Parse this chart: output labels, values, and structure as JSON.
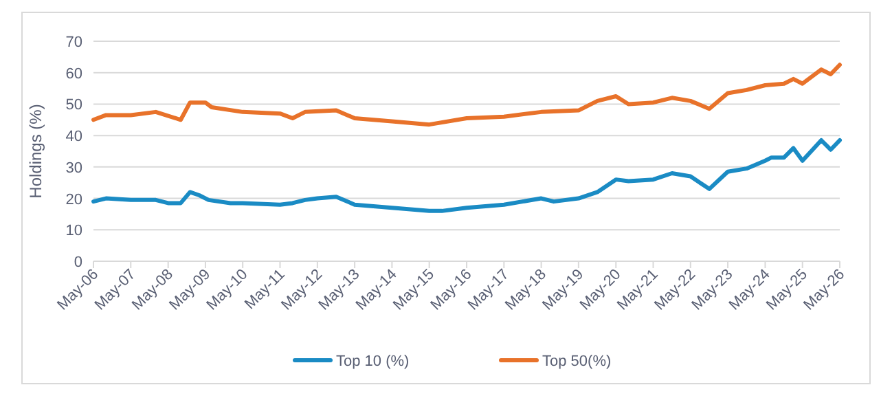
{
  "chart_data": {
    "type": "line",
    "ylabel": "Holdings (%)",
    "xlim": [
      "2006-05",
      "2026-05"
    ],
    "xticks": [
      {
        "value": "2006-05",
        "label": "May-06"
      },
      {
        "value": "2007-05",
        "label": "May-07"
      },
      {
        "value": "2008-05",
        "label": "May-08"
      },
      {
        "value": "2009-05",
        "label": "May-09"
      },
      {
        "value": "2010-05",
        "label": "May-10"
      },
      {
        "value": "2011-05",
        "label": "May-11"
      },
      {
        "value": "2012-05",
        "label": "May-12"
      },
      {
        "value": "2013-05",
        "label": "May-13"
      },
      {
        "value": "2014-05",
        "label": "May-14"
      },
      {
        "value": "2015-05",
        "label": "May-15"
      },
      {
        "value": "2016-05",
        "label": "May-16"
      },
      {
        "value": "2017-05",
        "label": "May-17"
      },
      {
        "value": "2018-05",
        "label": "May-18"
      },
      {
        "value": "2019-05",
        "label": "May-19"
      },
      {
        "value": "2020-05",
        "label": "May-20"
      },
      {
        "value": "2021-05",
        "label": "May-21"
      },
      {
        "value": "2022-05",
        "label": "May-22"
      },
      {
        "value": "2023-05",
        "label": "May-23"
      },
      {
        "value": "2024-05",
        "label": "May-24"
      },
      {
        "value": "2025-05",
        "label": "May-25"
      },
      {
        "value": "2026-05",
        "label": "May-26"
      }
    ],
    "ylim": [
      0,
      70
    ],
    "yticks": [
      0,
      10,
      20,
      30,
      40,
      50,
      60,
      70
    ],
    "grid": "y",
    "legend": "bottom",
    "marker": "none",
    "line_style": "solid",
    "series": [
      {
        "name": "Top 10 (%)",
        "color": "#1a8bc4",
        "x": [
          "2006-05",
          "2006-09",
          "2007-05",
          "2008-01",
          "2008-05",
          "2008-09",
          "2008-12",
          "2009-03",
          "2009-06",
          "2010-01",
          "2010-05",
          "2011-05",
          "2011-09",
          "2012-01",
          "2012-05",
          "2012-11",
          "2013-05",
          "2014-05",
          "2015-05",
          "2015-09",
          "2016-05",
          "2017-05",
          "2018-05",
          "2018-09",
          "2019-05",
          "2019-11",
          "2020-05",
          "2020-09",
          "2021-05",
          "2021-11",
          "2022-05",
          "2022-11",
          "2023-05",
          "2023-11",
          "2024-05",
          "2024-07",
          "2024-11",
          "2025-02",
          "2025-05",
          "2025-11",
          "2026-02",
          "2026-05"
        ],
        "values": [
          19,
          20,
          19.5,
          19.5,
          18.5,
          18.5,
          22,
          21,
          19.5,
          18.5,
          18.5,
          18,
          18.5,
          19.5,
          20,
          20.5,
          18,
          17,
          16,
          16,
          17,
          18,
          20,
          19,
          20,
          22,
          26,
          25.5,
          26,
          28,
          27,
          23,
          28.5,
          29.5,
          32,
          33,
          33,
          36,
          32,
          38.5,
          35.5,
          38.5
        ]
      },
      {
        "name": "Top 50(%)",
        "color": "#e8722a",
        "x": [
          "2006-05",
          "2006-09",
          "2007-05",
          "2008-01",
          "2008-09",
          "2008-12",
          "2009-05",
          "2009-07",
          "2010-05",
          "2011-05",
          "2011-09",
          "2012-01",
          "2012-11",
          "2013-05",
          "2014-05",
          "2015-05",
          "2016-05",
          "2017-05",
          "2018-05",
          "2019-05",
          "2019-11",
          "2020-05",
          "2020-09",
          "2021-05",
          "2021-11",
          "2022-05",
          "2022-11",
          "2023-05",
          "2023-11",
          "2024-05",
          "2024-11",
          "2025-02",
          "2025-05",
          "2025-11",
          "2026-02",
          "2026-05"
        ],
        "values": [
          45,
          46.5,
          46.5,
          47.5,
          45,
          50.5,
          50.5,
          49,
          47.5,
          47,
          45.5,
          47.5,
          48,
          45.5,
          44.5,
          43.5,
          45.5,
          46,
          47.5,
          48,
          51,
          52.5,
          50,
          50.5,
          52,
          51,
          48.5,
          53.5,
          54.5,
          56,
          56.5,
          58,
          56.5,
          61,
          59.5,
          62.5
        ]
      }
    ]
  }
}
